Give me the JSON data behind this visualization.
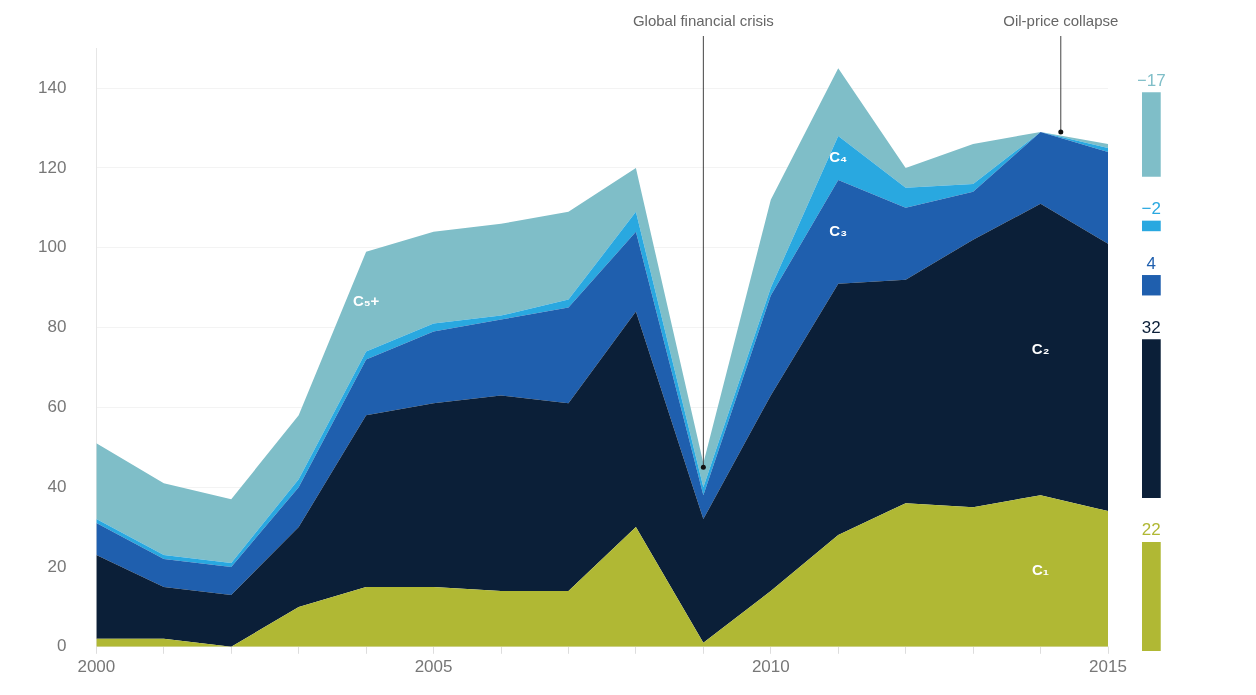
{
  "chart_data": [
    {
      "type": "area",
      "stacked": true,
      "x": [
        2000,
        2001,
        2002,
        2003,
        2004,
        2005,
        2006,
        2007,
        2008,
        2009,
        2010,
        2011,
        2012,
        2013,
        2014,
        2015
      ],
      "series": [
        {
          "name": "C₁",
          "color": "#b0b834",
          "values": [
            2,
            2,
            0,
            10,
            15,
            15,
            14,
            14,
            30,
            1,
            14,
            28,
            36,
            35,
            38,
            34
          ]
        },
        {
          "name": "C₂",
          "color": "#0b1f38",
          "values": [
            21,
            13,
            13,
            20,
            43,
            46,
            49,
            47,
            54,
            31,
            49,
            63,
            56,
            67,
            73,
            67
          ]
        },
        {
          "name": "C₃",
          "color": "#1f5fae",
          "values": [
            8,
            7,
            7,
            10,
            14,
            18,
            19,
            24,
            20,
            6,
            25,
            26,
            18,
            12,
            18,
            23
          ]
        },
        {
          "name": "C₄",
          "color": "#29a8e0",
          "values": [
            1,
            1,
            1,
            2,
            2,
            2,
            1,
            2,
            5,
            2,
            2,
            11,
            5,
            2,
            0,
            1
          ]
        },
        {
          "name": "C₅+",
          "color": "#7fbec8",
          "values": [
            19,
            18,
            16,
            16,
            25,
            23,
            23,
            22,
            11,
            6,
            22,
            17,
            5,
            10,
            0,
            1
          ]
        }
      ],
      "xlim": [
        2000,
        2015
      ],
      "xticks": [
        2000,
        {
          "value": 2001,
          "label": null
        },
        {
          "value": 2002,
          "label": null
        },
        {
          "value": 2003,
          "label": null
        },
        {
          "value": 2004,
          "label": null
        },
        2005,
        {
          "value": 2006,
          "label": null
        },
        {
          "value": 2007,
          "label": null
        },
        {
          "value": 2008,
          "label": null
        },
        {
          "value": 2009,
          "label": null
        },
        2010,
        {
          "value": 2011,
          "label": null
        },
        {
          "value": 2012,
          "label": null
        },
        {
          "value": 2013,
          "label": null
        },
        {
          "value": 2014,
          "label": null
        },
        2015
      ],
      "ylim": [
        0,
        150
      ],
      "yticks": [
        0,
        20,
        40,
        60,
        80,
        100,
        120,
        140
      ],
      "grid": "y",
      "legend": false,
      "annotations": [
        {
          "text": "Global financial crisis",
          "x": 2009,
          "y": 45
        },
        {
          "text": "Oil-price collapse",
          "x": 2014.3,
          "y": 129
        }
      ]
    },
    {
      "type": "other",
      "categories": [
        null,
        null,
        null,
        null,
        null
      ],
      "values": [
        -17,
        -2,
        4,
        32,
        22
      ],
      "colors": [
        "#7fbec8",
        "#29a8e0",
        "#1f5fae",
        "#0b1f38",
        "#b0b834"
      ],
      "data_labels": true
    }
  ]
}
